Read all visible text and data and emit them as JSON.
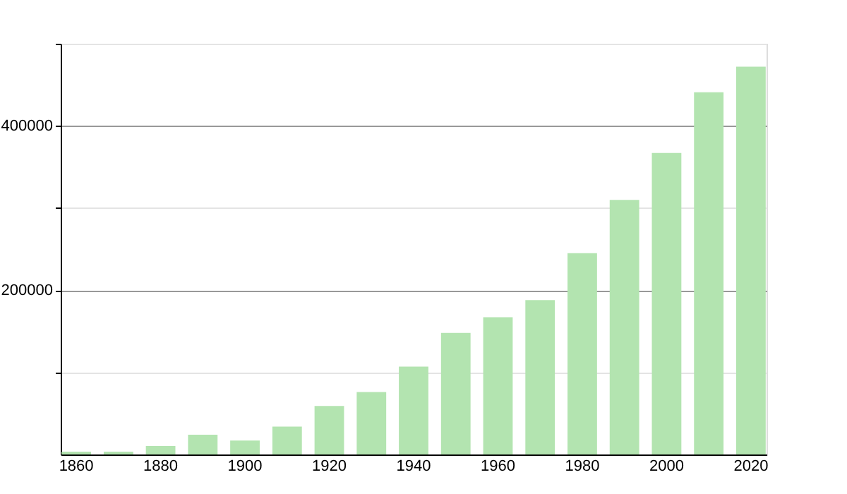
{
  "chart_data": {
    "type": "bar",
    "categories": [
      "1860",
      null,
      "1880",
      null,
      "1900",
      null,
      "1920",
      null,
      "1940",
      null,
      "1960",
      null,
      "1980",
      null,
      "2000",
      null,
      "2020"
    ],
    "values": [
      3400,
      3400,
      10300,
      24000,
      17000,
      34000,
      59000,
      76000,
      107000,
      148000,
      167000,
      188000,
      245000,
      310000,
      367000,
      441000,
      472000
    ],
    "color": "#b3e4b0",
    "ylim": [
      0,
      500000
    ],
    "yticks": [
      {
        "value": 100000,
        "label": null
      },
      200000,
      {
        "value": 300000,
        "label": null
      },
      400000,
      {
        "value": 500000,
        "label": null
      }
    ],
    "grid": "y"
  }
}
